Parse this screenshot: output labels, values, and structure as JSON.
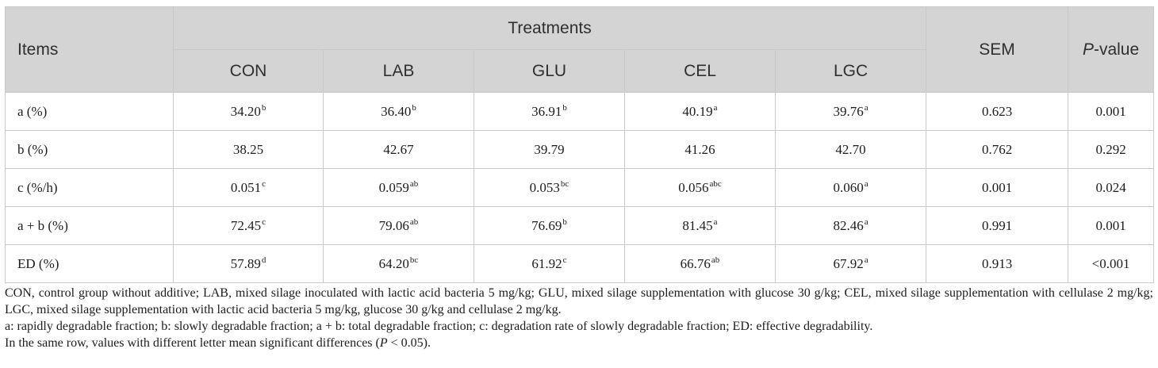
{
  "table": {
    "header": {
      "items": "Items",
      "treatments": "Treatments",
      "sem": "SEM",
      "p_italic": "P",
      "p_rest": "-value",
      "groups": [
        "CON",
        "LAB",
        "GLU",
        "CEL",
        "LGC"
      ]
    },
    "rows": [
      {
        "label": "a (%)",
        "cells": [
          {
            "v": "34.20",
            "s": "b"
          },
          {
            "v": "36.40",
            "s": "b"
          },
          {
            "v": "36.91",
            "s": "b"
          },
          {
            "v": "40.19",
            "s": "a"
          },
          {
            "v": "39.76",
            "s": "a"
          }
        ],
        "sem": "0.623",
        "p": "0.001"
      },
      {
        "label": "b (%)",
        "cells": [
          {
            "v": "38.25",
            "s": ""
          },
          {
            "v": "42.67",
            "s": ""
          },
          {
            "v": "39.79",
            "s": ""
          },
          {
            "v": "41.26",
            "s": ""
          },
          {
            "v": "42.70",
            "s": ""
          }
        ],
        "sem": "0.762",
        "p": "0.292"
      },
      {
        "label": "c (%/h)",
        "cells": [
          {
            "v": "0.051",
            "s": "c"
          },
          {
            "v": "0.059",
            "s": "ab"
          },
          {
            "v": "0.053",
            "s": "bc"
          },
          {
            "v": "0.056",
            "s": "abc"
          },
          {
            "v": "0.060",
            "s": "a"
          }
        ],
        "sem": "0.001",
        "p": "0.024"
      },
      {
        "label": "a + b (%)",
        "cells": [
          {
            "v": "72.45",
            "s": "c"
          },
          {
            "v": "79.06",
            "s": "ab"
          },
          {
            "v": "76.69",
            "s": "b"
          },
          {
            "v": "81.45",
            "s": "a"
          },
          {
            "v": "82.46",
            "s": "a"
          }
        ],
        "sem": "0.991",
        "p": "0.001"
      },
      {
        "label": "ED (%)",
        "cells": [
          {
            "v": "57.89",
            "s": "d"
          },
          {
            "v": "64.20",
            "s": "bc"
          },
          {
            "v": "61.92",
            "s": "c"
          },
          {
            "v": "66.76",
            "s": "ab"
          },
          {
            "v": "67.92",
            "s": "a"
          }
        ],
        "sem": "0.913",
        "p": "<0.001"
      }
    ]
  },
  "notes": {
    "abbreviations": "CON, control group without additive; LAB, mixed silage inoculated with lactic acid bacteria 5 mg/kg; GLU, mixed silage supplementation with glucose 30 g/kg; CEL, mixed silage supplementation with cellulase 2 mg/kg; LGC, mixed silage supplementation with lactic acid bacteria 5 mg/kg, glucose 30 g/kg and cellulase 2 mg/kg.",
    "definitions": "a: rapidly degradable fraction; b: slowly degradable fraction; a + b: total degradable fraction; c: degradation rate of slowly degradable fraction; ED: effective degradability.",
    "significance_pre": "In the same row, values with different letter mean significant differences (",
    "significance_italic": "P",
    "significance_post": " < 0.05)."
  }
}
